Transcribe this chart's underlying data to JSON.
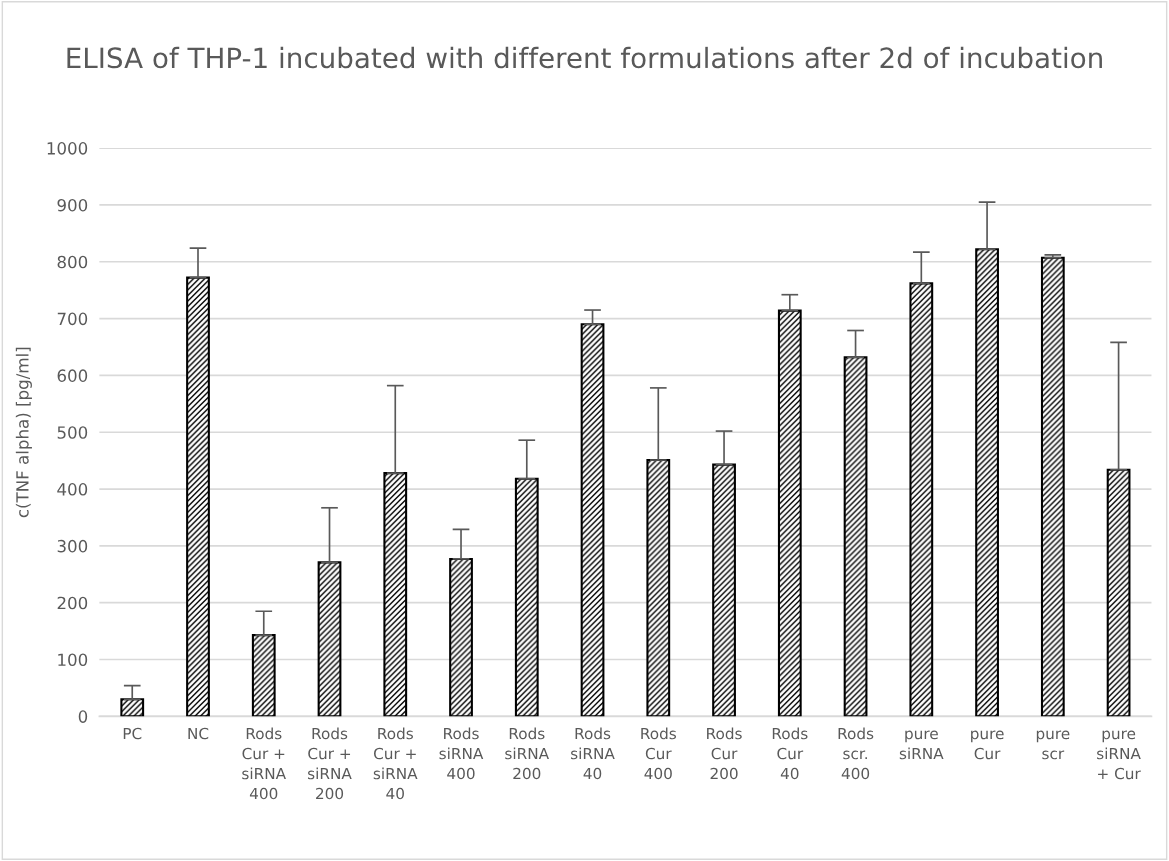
{
  "chart_data": {
    "type": "bar",
    "title": "ELISA of THP-1 incubated with different formulations after 2d of incubation",
    "ylabel": "c(TNF alpha) [pg/ml]",
    "categories": [
      "PC",
      "NC",
      "Rods\nCur +\nsiRNA\n400",
      "Rods\nCur +\nsiRNA\n200",
      "Rods\nCur +\nsiRNA\n40",
      "Rods\nsiRNA\n400",
      "Rods\nsiRNA\n200",
      "Rods\nsiRNA\n40",
      "Rods\nCur\n400",
      "Rods\nCur\n200",
      "Rods\nCur\n40",
      "Rods\nscr.\n400",
      "pure\nsiRNA",
      "pure\nCur",
      "pure\nscr",
      "pure\nsiRNA\n+ Cur"
    ],
    "values": [
      30,
      772,
      143,
      271,
      428,
      277,
      418,
      690,
      451,
      443,
      714,
      632,
      762,
      822,
      807,
      434
    ],
    "errors": [
      [
        30,
        54
      ],
      [
        772,
        824
      ],
      [
        143,
        185
      ],
      [
        271,
        367
      ],
      [
        428,
        582
      ],
      [
        277,
        329
      ],
      [
        418,
        486
      ],
      [
        690,
        715
      ],
      [
        451,
        578
      ],
      [
        443,
        502
      ],
      [
        714,
        742
      ],
      [
        632,
        679
      ],
      [
        762,
        817
      ],
      [
        822,
        905
      ],
      [
        807,
        812
      ],
      [
        434,
        658
      ]
    ],
    "color": "#000000",
    "ylim": [
      0,
      1000
    ],
    "yticks": [
      0,
      100,
      200,
      300,
      400,
      500,
      600,
      700,
      800,
      900,
      1000
    ],
    "grid": "y",
    "legend": false
  }
}
